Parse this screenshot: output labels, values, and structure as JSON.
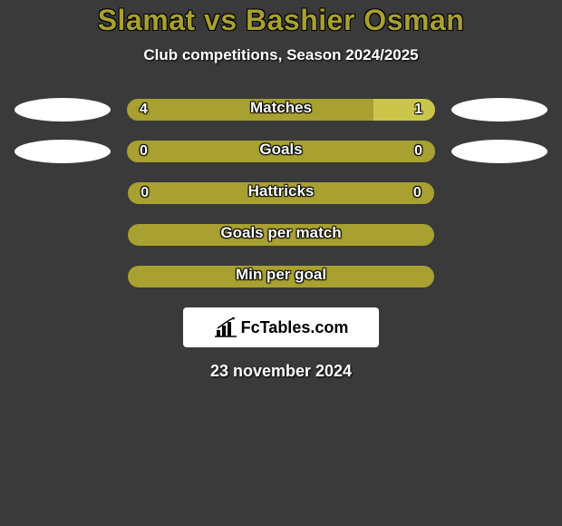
{
  "colors": {
    "background": "#3a3a3a",
    "accent": "#a8a030",
    "accent_light": "#cbc64a",
    "white": "#ffffff",
    "text_dark": "#000000"
  },
  "title": "Slamat vs Bashier Osman",
  "subtitle": "Club competitions, Season 2024/2025",
  "rows": [
    {
      "label": "Matches",
      "left_value": "4",
      "right_value": "1",
      "left_pct": 80,
      "right_pct": 20,
      "left_color": "#a8a030",
      "right_color": "#cbc64a",
      "show_ellipses": true
    },
    {
      "label": "Goals",
      "left_value": "0",
      "right_value": "0",
      "left_pct": 50,
      "right_pct": 50,
      "left_color": "#a8a030",
      "right_color": "#a8a030",
      "show_ellipses": true
    },
    {
      "label": "Hattricks",
      "left_value": "0",
      "right_value": "0",
      "left_pct": 50,
      "right_pct": 50,
      "left_color": "#a8a030",
      "right_color": "#a8a030",
      "show_ellipses": false
    },
    {
      "label": "Goals per match",
      "left_value": "",
      "right_value": "",
      "left_pct": 100,
      "right_pct": 0,
      "left_color": "#a8a030",
      "right_color": "#a8a030",
      "show_ellipses": false
    },
    {
      "label": "Min per goal",
      "left_value": "",
      "right_value": "",
      "left_pct": 100,
      "right_pct": 0,
      "left_color": "#a8a030",
      "right_color": "#a8a030",
      "show_ellipses": false
    }
  ],
  "logo_text": "FcTables.com",
  "date": "23 november 2024"
}
